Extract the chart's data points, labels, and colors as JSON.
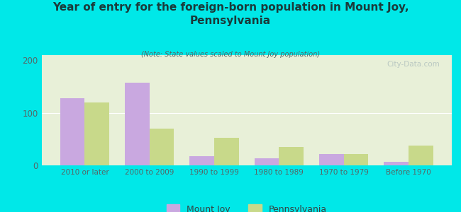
{
  "title": "Year of entry for the foreign-born population in Mount Joy,\nPennsylvania",
  "subtitle": "(Note: State values scaled to Mount Joy population)",
  "categories": [
    "2010 or later",
    "2000 to 2009",
    "1990 to 1999",
    "1980 to 1989",
    "1970 to 1979",
    "Before 1970"
  ],
  "mount_joy": [
    128,
    158,
    18,
    13,
    22,
    7
  ],
  "pennsylvania": [
    120,
    70,
    52,
    35,
    21,
    38
  ],
  "bar_color_mj": "#c9a8e0",
  "bar_color_pa": "#c8d98a",
  "background_outer": "#00e8e8",
  "background_inner": "#e8f0d8",
  "ylim": [
    0,
    210
  ],
  "yticks": [
    0,
    100,
    200
  ],
  "bar_width": 0.38,
  "watermark": "City-Data.com",
  "legend_label_mj": "Mount Joy",
  "legend_label_pa": "Pennsylvania",
  "title_color": "#1a3a3a",
  "subtitle_color": "#556666",
  "tick_color": "#556666",
  "legend_color": "#334444"
}
